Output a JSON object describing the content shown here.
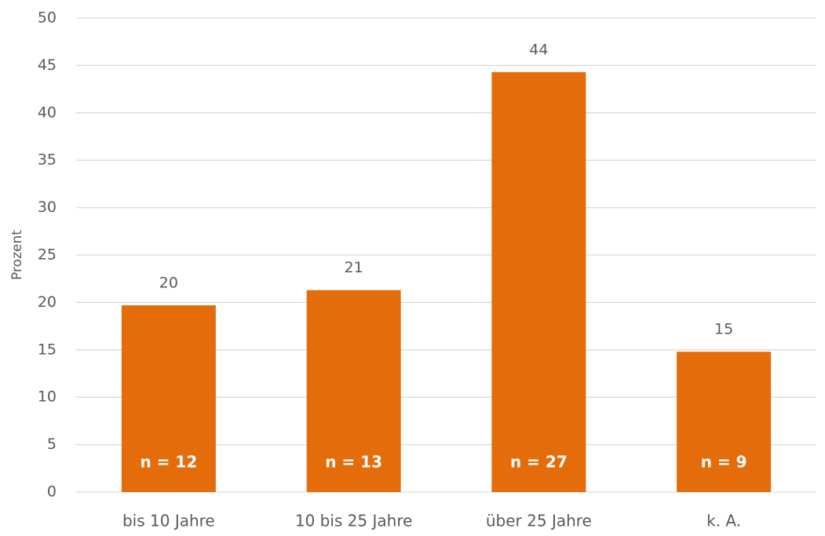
{
  "chart_data": {
    "type": "bar",
    "y_label": "Prozent",
    "categories": [
      "bis 10 Jahre",
      "10 bis 25 Jahre",
      "über 25 Jahre",
      "k. A."
    ],
    "values": [
      19.7,
      21.3,
      44.3,
      14.8
    ],
    "value_labels": [
      "20",
      "21",
      "44",
      "15"
    ],
    "n_labels": [
      "n = 12",
      "n = 13",
      "n = 27",
      "n = 9"
    ],
    "color": "#e46c0a",
    "ylim": [
      0,
      50
    ],
    "yticks": [
      0,
      5,
      10,
      15,
      20,
      25,
      30,
      35,
      40,
      45,
      50
    ],
    "grid": true
  }
}
